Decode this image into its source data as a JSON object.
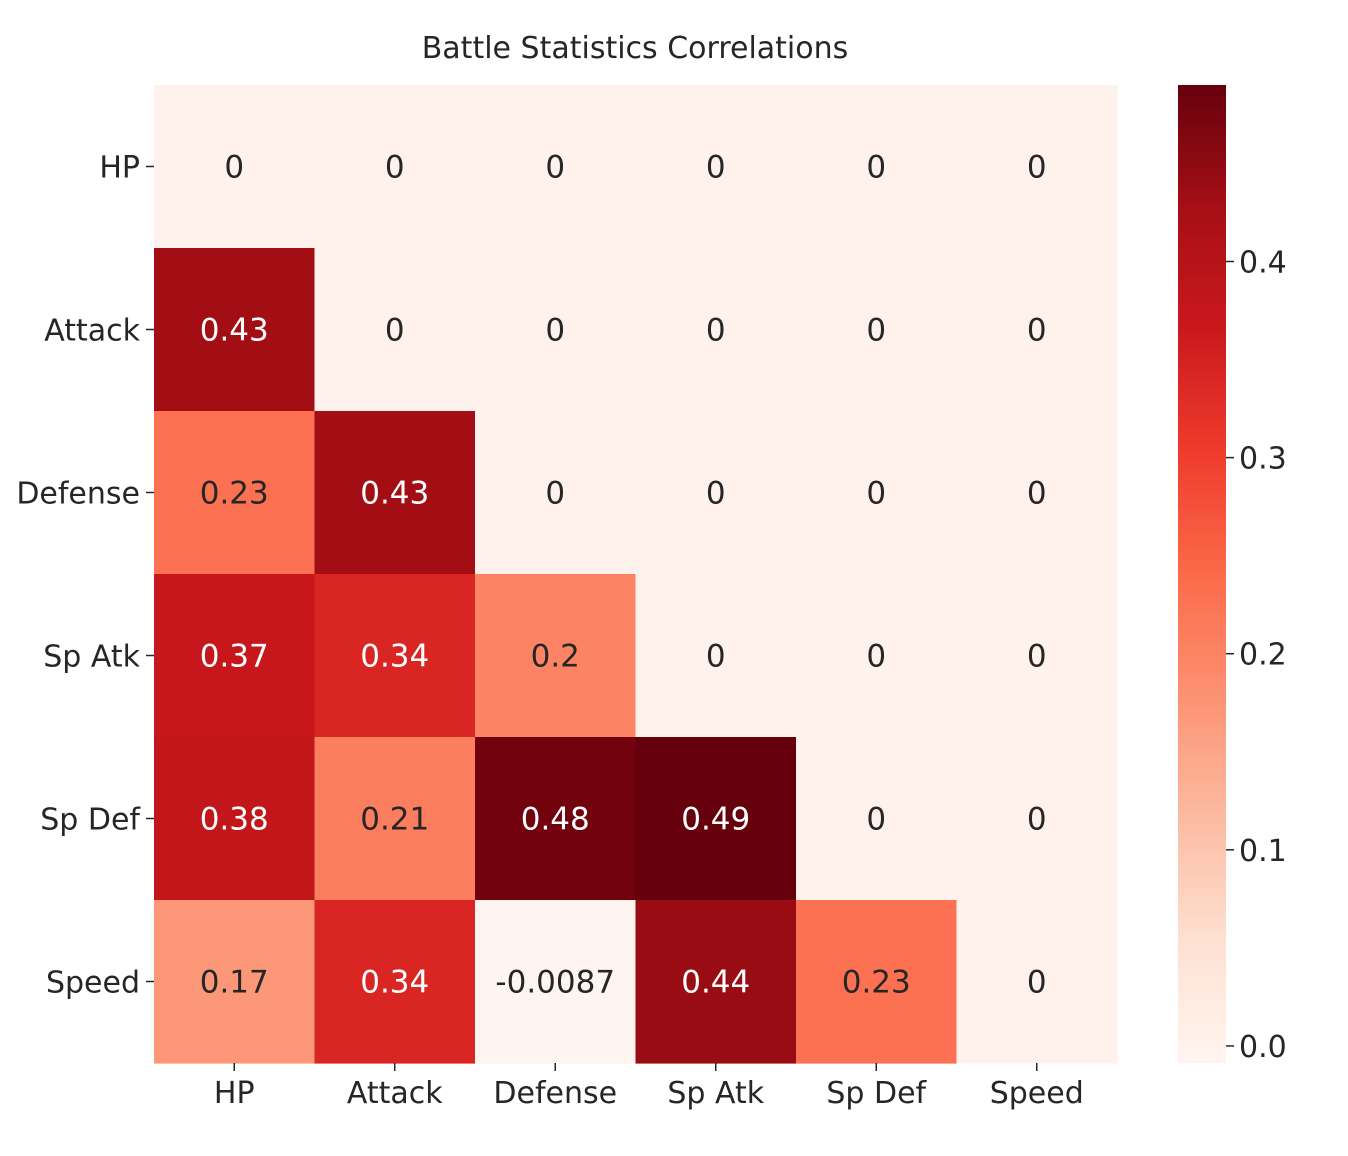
{
  "chart_data": {
    "type": "heatmap",
    "title": "Battle Statistics Correlations",
    "x_categories": [
      "HP",
      "Attack",
      "Defense",
      "Sp Atk",
      "Sp Def",
      "Speed"
    ],
    "y_categories": [
      "HP",
      "Attack",
      "Defense",
      "Sp Atk",
      "Sp Def",
      "Speed"
    ],
    "values": [
      [
        0,
        0,
        0,
        0,
        0,
        0
      ],
      [
        0.43,
        0,
        0,
        0,
        0,
        0
      ],
      [
        0.23,
        0.43,
        0,
        0,
        0,
        0
      ],
      [
        0.37,
        0.34,
        0.2,
        0,
        0,
        0
      ],
      [
        0.38,
        0.21,
        0.48,
        0.49,
        0,
        0
      ],
      [
        0.17,
        0.34,
        -0.0087,
        0.44,
        0.23,
        0
      ]
    ],
    "annotations": [
      [
        "0",
        "0",
        "0",
        "0",
        "0",
        "0"
      ],
      [
        "0.43",
        "0",
        "0",
        "0",
        "0",
        "0"
      ],
      [
        "0.23",
        "0.43",
        "0",
        "0",
        "0",
        "0"
      ],
      [
        "0.37",
        "0.34",
        "0.2",
        "0",
        "0",
        "0"
      ],
      [
        "0.38",
        "0.21",
        "0.48",
        "0.49",
        "0",
        "0"
      ],
      [
        "0.17",
        "0.34",
        "-0.0087",
        "0.44",
        "0.23",
        "0"
      ]
    ],
    "colormap": "Reds",
    "vmin": -0.0087,
    "vmax": 0.49,
    "colorbar_ticks": [
      "0.0",
      "0.1",
      "0.2",
      "0.3",
      "0.4"
    ],
    "colorbar_tick_values": [
      0.0,
      0.1,
      0.2,
      0.3,
      0.4
    ]
  }
}
